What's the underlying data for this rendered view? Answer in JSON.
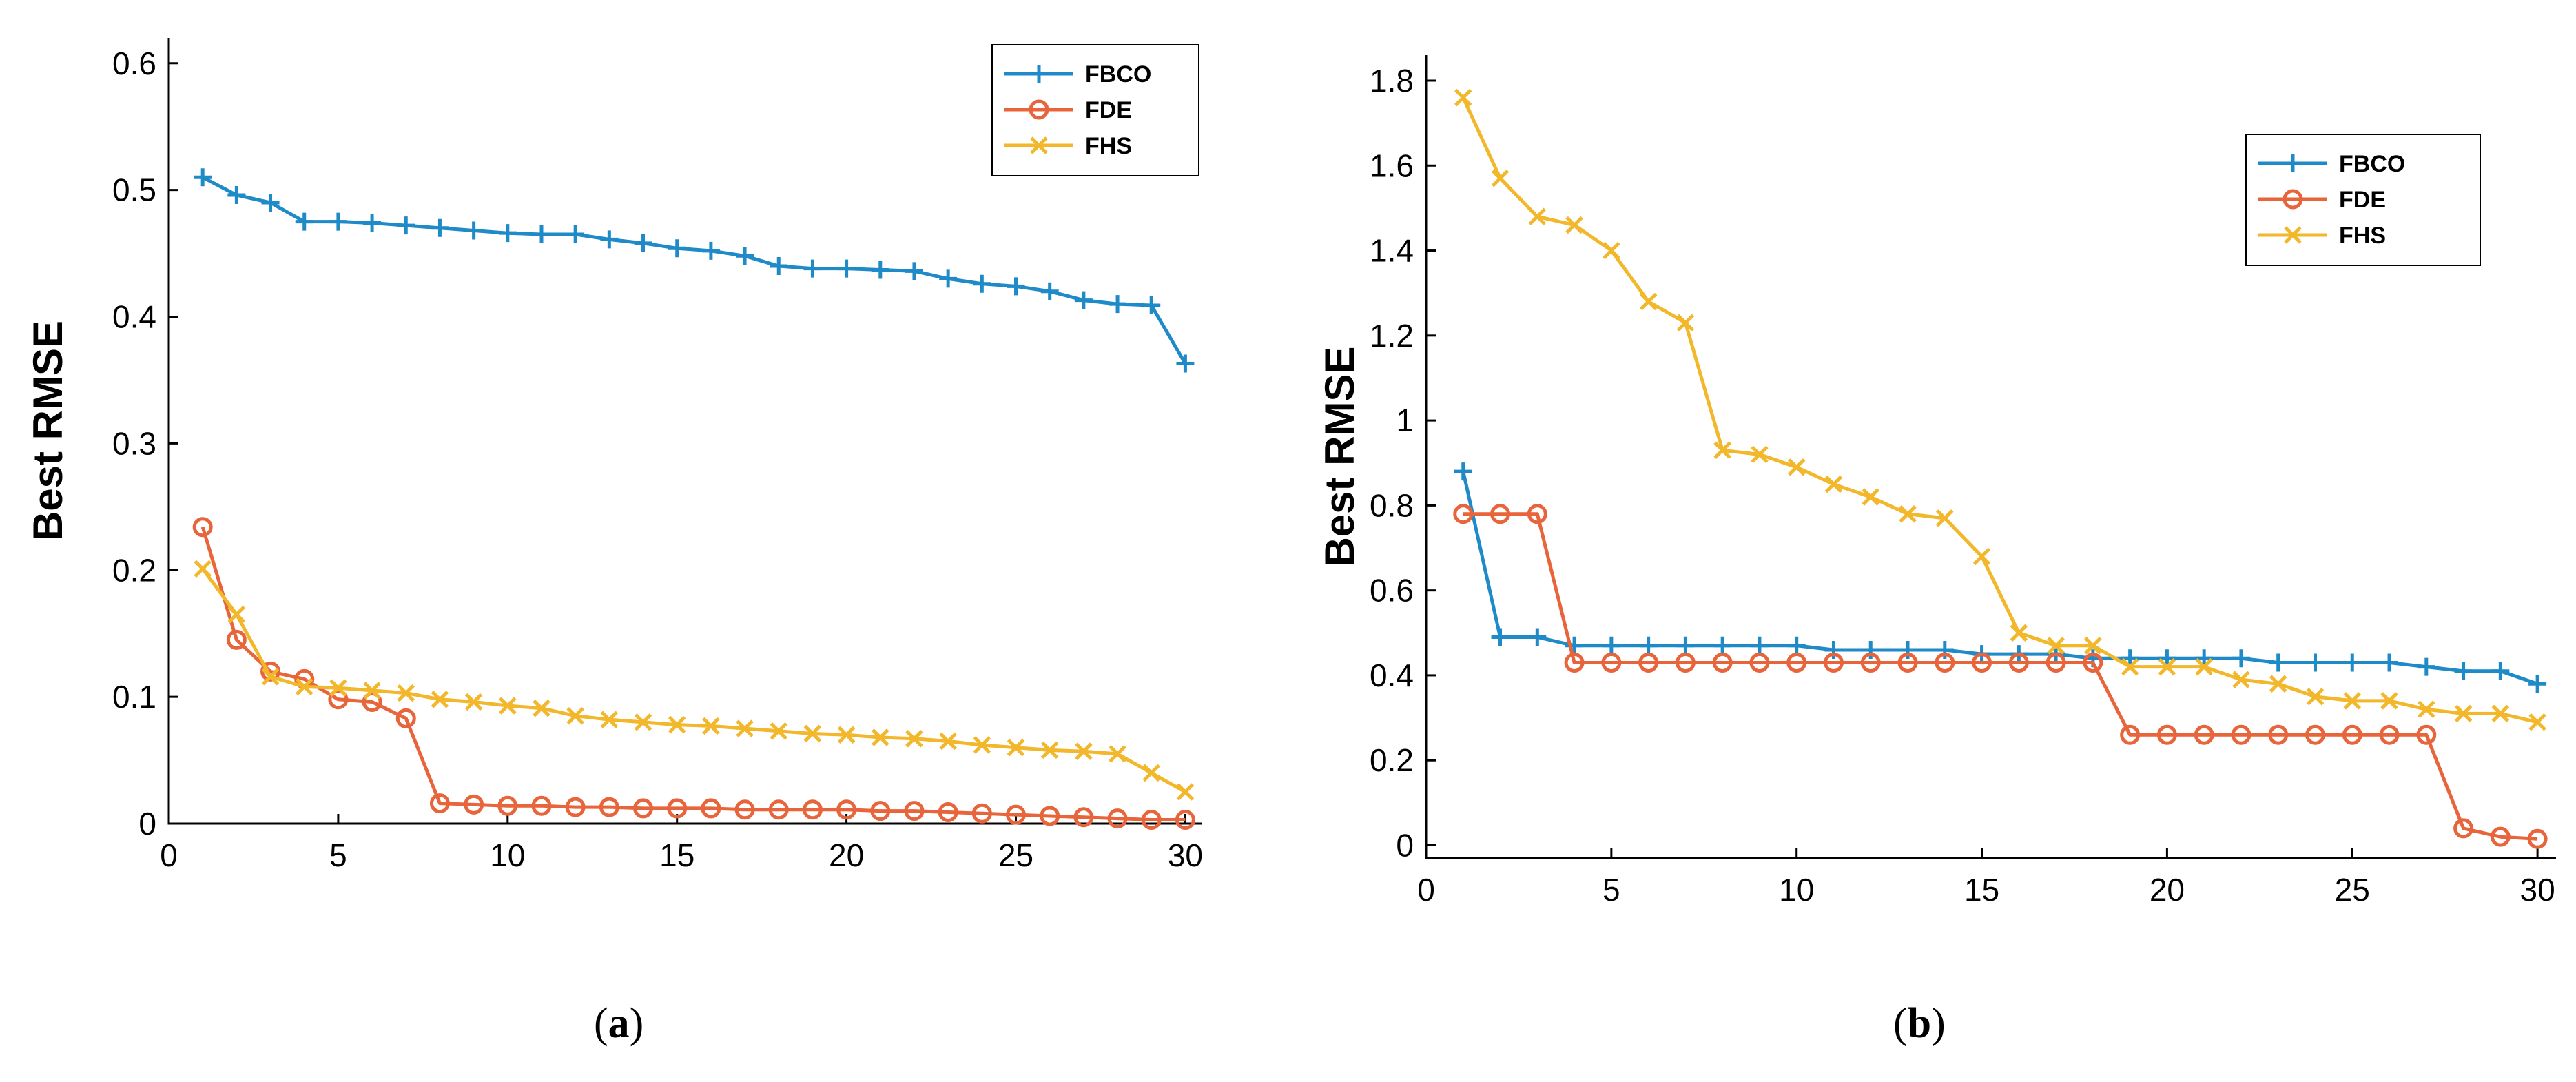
{
  "captions": {
    "a": {
      "open": "(",
      "letter": "a",
      "close": ")"
    },
    "b": {
      "open": "(",
      "letter": "b",
      "close": ")"
    }
  },
  "colors": {
    "FBCO": "#1f8ac8",
    "FDE": "#e8643a",
    "FHS": "#f2b72a"
  },
  "chart_data": [
    {
      "type": "line",
      "panel": "a",
      "ylabel": "Best RMSE",
      "xlim": [
        0,
        30.5
      ],
      "ylim": [
        0,
        0.62
      ],
      "xticks": [
        0,
        5,
        10,
        15,
        20,
        25,
        30
      ],
      "yticks": [
        0,
        0.1,
        0.2,
        0.3,
        0.4,
        0.5,
        0.6
      ],
      "ytick_labels": [
        "0",
        "0.1",
        "0.2",
        "0.3",
        "0.4",
        "0.5",
        "0.6"
      ],
      "xtick_labels": [
        "0",
        "5",
        "10",
        "15",
        "20",
        "25",
        "30"
      ],
      "legend_position": "top-right",
      "series": [
        {
          "name": "FBCO",
          "marker": "plus",
          "x": [
            1,
            2,
            3,
            4,
            5,
            6,
            7,
            8,
            9,
            10,
            11,
            12,
            13,
            14,
            15,
            16,
            17,
            18,
            19,
            20,
            21,
            22,
            23,
            24,
            25,
            26,
            27,
            28,
            29,
            30
          ],
          "y": [
            0.51,
            0.496,
            0.49,
            0.475,
            0.475,
            0.474,
            0.472,
            0.47,
            0.468,
            0.466,
            0.465,
            0.465,
            0.461,
            0.458,
            0.454,
            0.452,
            0.448,
            0.44,
            0.438,
            0.438,
            0.437,
            0.436,
            0.43,
            0.426,
            0.424,
            0.42,
            0.413,
            0.41,
            0.409,
            0.363
          ]
        },
        {
          "name": "FDE",
          "marker": "circle",
          "x": [
            1,
            2,
            3,
            4,
            5,
            6,
            7,
            8,
            9,
            10,
            11,
            12,
            13,
            14,
            15,
            16,
            17,
            18,
            19,
            20,
            21,
            22,
            23,
            24,
            25,
            26,
            27,
            28,
            29,
            30
          ],
          "y": [
            0.234,
            0.145,
            0.12,
            0.114,
            0.098,
            0.096,
            0.083,
            0.016,
            0.015,
            0.014,
            0.014,
            0.013,
            0.013,
            0.012,
            0.012,
            0.012,
            0.011,
            0.011,
            0.011,
            0.011,
            0.01,
            0.01,
            0.009,
            0.008,
            0.007,
            0.006,
            0.005,
            0.004,
            0.003,
            0.003
          ]
        },
        {
          "name": "FHS",
          "marker": "x",
          "x": [
            1,
            2,
            3,
            4,
            5,
            6,
            7,
            8,
            9,
            10,
            11,
            12,
            13,
            14,
            15,
            16,
            17,
            18,
            19,
            20,
            21,
            22,
            23,
            24,
            25,
            26,
            27,
            28,
            29,
            30
          ],
          "y": [
            0.201,
            0.165,
            0.116,
            0.108,
            0.107,
            0.105,
            0.103,
            0.098,
            0.096,
            0.093,
            0.091,
            0.085,
            0.082,
            0.08,
            0.078,
            0.077,
            0.075,
            0.073,
            0.071,
            0.07,
            0.068,
            0.067,
            0.065,
            0.062,
            0.06,
            0.058,
            0.057,
            0.055,
            0.04,
            0.025
          ]
        }
      ]
    },
    {
      "type": "line",
      "panel": "b",
      "ylabel": "Best RMSE",
      "xlim": [
        0,
        30.5
      ],
      "ylim": [
        -0.03,
        1.86
      ],
      "xticks": [
        0,
        5,
        10,
        15,
        20,
        25,
        30
      ],
      "yticks": [
        0,
        0.2,
        0.4,
        0.6,
        0.8,
        1,
        1.2,
        1.4,
        1.6,
        1.8
      ],
      "ytick_labels": [
        "0",
        "0.2",
        "0.4",
        "0.6",
        "0.8",
        "1",
        "1.2",
        "1.4",
        "1.6",
        "1.8"
      ],
      "xtick_labels": [
        "0",
        "5",
        "10",
        "15",
        "20",
        "25",
        "30"
      ],
      "legend_position": "top-right",
      "series": [
        {
          "name": "FBCO",
          "marker": "plus",
          "x": [
            1,
            2,
            3,
            4,
            5,
            6,
            7,
            8,
            9,
            10,
            11,
            12,
            13,
            14,
            15,
            16,
            17,
            18,
            19,
            20,
            21,
            22,
            23,
            24,
            25,
            26,
            27,
            28,
            29,
            30
          ],
          "y": [
            0.88,
            0.49,
            0.49,
            0.47,
            0.47,
            0.47,
            0.47,
            0.47,
            0.47,
            0.47,
            0.46,
            0.46,
            0.46,
            0.46,
            0.45,
            0.45,
            0.45,
            0.44,
            0.44,
            0.44,
            0.44,
            0.44,
            0.43,
            0.43,
            0.43,
            0.43,
            0.42,
            0.41,
            0.41,
            0.38
          ]
        },
        {
          "name": "FDE",
          "marker": "circle",
          "x": [
            1,
            2,
            3,
            4,
            5,
            6,
            7,
            8,
            9,
            10,
            11,
            12,
            13,
            14,
            15,
            16,
            17,
            18,
            19,
            20,
            21,
            22,
            23,
            24,
            25,
            26,
            27,
            28,
            29,
            30
          ],
          "y": [
            0.78,
            0.78,
            0.78,
            0.43,
            0.43,
            0.43,
            0.43,
            0.43,
            0.43,
            0.43,
            0.43,
            0.43,
            0.43,
            0.43,
            0.43,
            0.43,
            0.43,
            0.43,
            0.26,
            0.26,
            0.26,
            0.26,
            0.26,
            0.26,
            0.26,
            0.26,
            0.26,
            0.04,
            0.02,
            0.015
          ]
        },
        {
          "name": "FHS",
          "marker": "x",
          "x": [
            1,
            2,
            3,
            4,
            5,
            6,
            7,
            8,
            9,
            10,
            11,
            12,
            13,
            14,
            15,
            16,
            17,
            18,
            19,
            20,
            21,
            22,
            23,
            24,
            25,
            26,
            27,
            28,
            29,
            30
          ],
          "y": [
            1.76,
            1.57,
            1.48,
            1.46,
            1.4,
            1.28,
            1.23,
            0.93,
            0.92,
            0.89,
            0.85,
            0.82,
            0.78,
            0.77,
            0.68,
            0.5,
            0.47,
            0.47,
            0.42,
            0.42,
            0.42,
            0.39,
            0.38,
            0.35,
            0.34,
            0.34,
            0.32,
            0.31,
            0.31,
            0.29
          ]
        }
      ]
    }
  ]
}
